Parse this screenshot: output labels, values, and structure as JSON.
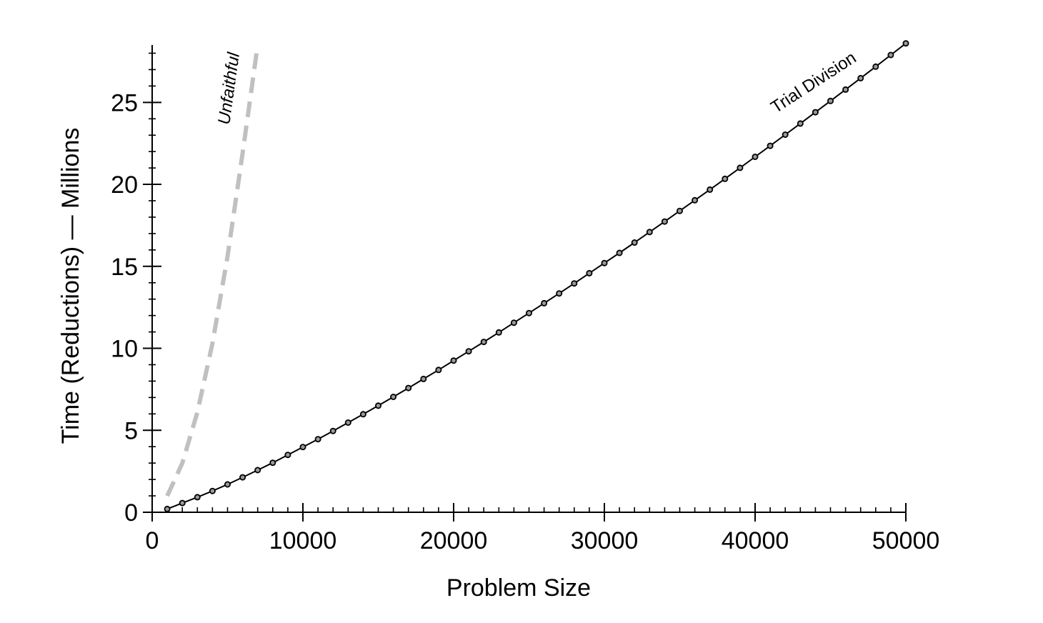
{
  "chart_data": {
    "type": "line",
    "xlabel": "Problem Size",
    "ylabel": "Time (Reductions) — Millions",
    "xlim": [
      0,
      50000
    ],
    "ylim": [
      0,
      28.5
    ],
    "x_ticks": [
      0,
      10000,
      20000,
      30000,
      40000,
      50000
    ],
    "x_tick_labels": [
      "0",
      "10000",
      "20000",
      "30000",
      "40000",
      "50000"
    ],
    "y_ticks": [
      0,
      5,
      10,
      15,
      20,
      25
    ],
    "y_tick_labels": [
      "0",
      "5",
      "10",
      "15",
      "20",
      "25"
    ],
    "grid": false,
    "series": [
      {
        "name": "Unfaithful",
        "style": "dashed",
        "color": "#c0c0c0",
        "x": [
          1000,
          2000,
          3000,
          4000,
          5000,
          6000,
          7000
        ],
        "y": [
          1.0,
          3.0,
          6.1,
          10.3,
          15.6,
          21.9,
          28.5
        ]
      },
      {
        "name": "Trial Division",
        "style": "solid-with-markers",
        "color": "#000000",
        "marker_fill": "#9a9a9a",
        "x": [
          1000,
          2000,
          3000,
          4000,
          5000,
          6000,
          7000,
          8000,
          9000,
          10000,
          11000,
          12000,
          13000,
          14000,
          15000,
          16000,
          17000,
          18000,
          19000,
          20000,
          21000,
          22000,
          23000,
          24000,
          25000,
          26000,
          27000,
          28000,
          29000,
          30000,
          31000,
          32000,
          33000,
          34000,
          35000,
          36000,
          37000,
          38000,
          39000,
          40000,
          41000,
          42000,
          43000,
          44000,
          45000,
          46000,
          47000,
          48000,
          49000,
          50000
        ],
        "y": [
          0.2,
          0.56,
          0.92,
          1.3,
          1.7,
          2.13,
          2.57,
          3.02,
          3.5,
          3.98,
          4.46,
          4.96,
          5.47,
          5.98,
          6.5,
          7.04,
          7.58,
          8.13,
          8.68,
          9.25,
          9.82,
          10.39,
          10.97,
          11.56,
          12.15,
          12.75,
          13.35,
          13.96,
          14.58,
          15.2,
          15.82,
          16.45,
          17.09,
          17.73,
          18.38,
          19.03,
          19.68,
          20.34,
          21.01,
          21.68,
          22.35,
          23.03,
          23.71,
          24.4,
          25.09,
          25.78,
          26.48,
          27.18,
          27.89,
          28.6
        ]
      }
    ]
  }
}
